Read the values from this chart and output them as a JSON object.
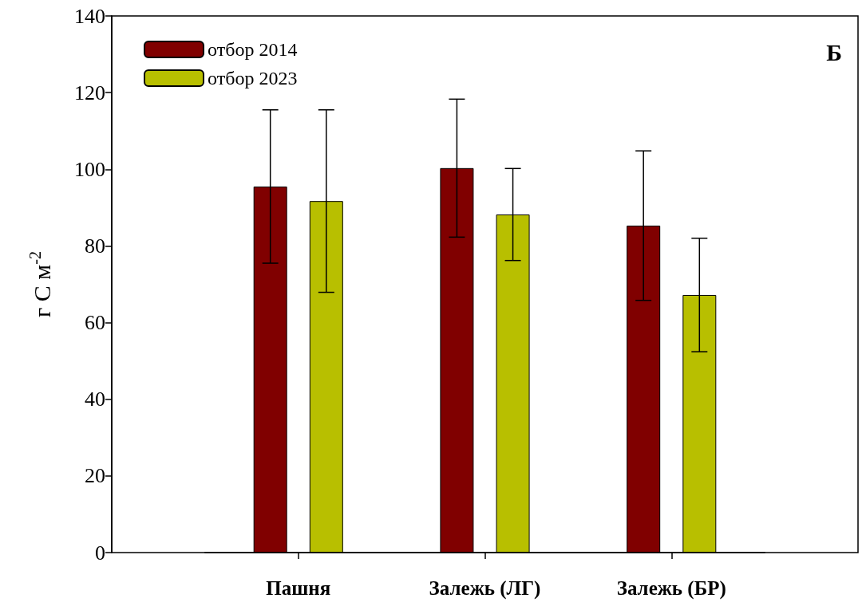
{
  "chart_data": {
    "type": "bar",
    "ylabel": "г С м$^{-2}$",
    "categories": [
      "Пашня",
      "Залежь (ЛГ)",
      "Залежь (БР)"
    ],
    "series": [
      {
        "name": "отбор 2014",
        "color": "#800000",
        "values": [
          95.5,
          100.3,
          85.3
        ],
        "errors": [
          20,
          18,
          19.5
        ]
      },
      {
        "name": "отбор 2023",
        "color": "#b8bf00",
        "values": [
          91.7,
          88.2,
          67.2
        ],
        "errors": [
          23.8,
          12,
          14.8
        ]
      }
    ],
    "ylim": [
      0,
      140
    ],
    "yticks": [
      0,
      20,
      40,
      60,
      80,
      100,
      120,
      140
    ],
    "grid": false,
    "legend": "top left",
    "annotations": [
      "Б"
    ]
  }
}
